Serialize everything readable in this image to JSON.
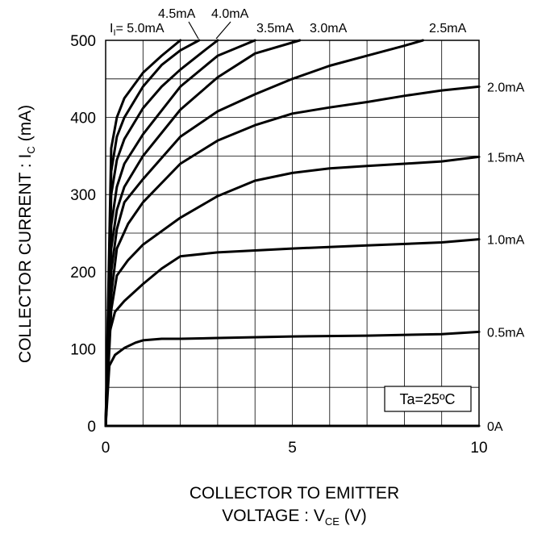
{
  "chart_data": {
    "type": "line",
    "title": "",
    "xlabel": {
      "line1": "COLLECTOR TO EMITTER",
      "line2_prefix": "VOLTAGE : V",
      "line2_sub": "CE",
      "line2_suffix": " (V)"
    },
    "ylabel": {
      "prefix": "COLLECTOR CURRENT : I",
      "sub": "C",
      "suffix": " (mA)"
    },
    "xlim": [
      0,
      10
    ],
    "ylim": [
      0,
      500
    ],
    "x_major_ticks": [
      0,
      5,
      10
    ],
    "y_major_ticks": [
      0,
      100,
      200,
      300,
      400,
      500
    ],
    "x_grid_step": 1,
    "y_grid_step": 50,
    "grid": true,
    "annotation": "Ta=25ºC",
    "ib_prefix": "I",
    "ib_sub": "I",
    "ib_eq": "= ",
    "series": [
      {
        "name": "0A",
        "x": [
          0,
          10
        ],
        "y": [
          0,
          0
        ]
      },
      {
        "name": "0.5mA",
        "x": [
          0,
          0.1,
          0.25,
          0.5,
          0.8,
          1.0,
          1.5,
          2,
          3,
          5,
          7,
          9,
          10
        ],
        "y": [
          0,
          78,
          92,
          101,
          108,
          111,
          113,
          113,
          114,
          116,
          117,
          119,
          122
        ]
      },
      {
        "name": "1.0mA",
        "x": [
          0,
          0.1,
          0.25,
          0.5,
          1,
          1.5,
          2,
          3,
          5,
          7,
          9,
          10
        ],
        "y": [
          0,
          120,
          148,
          162,
          184,
          204,
          220,
          225,
          230,
          234,
          238,
          242
        ]
      },
      {
        "name": "1.5mA",
        "x": [
          0,
          0.15,
          0.3,
          0.6,
          1,
          2,
          3,
          4,
          5,
          6,
          7,
          8,
          9,
          10
        ],
        "y": [
          0,
          150,
          195,
          215,
          235,
          270,
          298,
          318,
          328,
          334,
          337,
          340,
          343,
          349
        ]
      },
      {
        "name": "2.0mA",
        "x": [
          0,
          0.15,
          0.3,
          0.6,
          1,
          2,
          3,
          4,
          5,
          6,
          7,
          8,
          9,
          10
        ],
        "y": [
          0,
          170,
          230,
          262,
          290,
          340,
          370,
          390,
          405,
          413,
          420,
          428,
          435,
          440
        ]
      },
      {
        "name": "2.5mA",
        "x": [
          0,
          0.15,
          0.3,
          0.5,
          1,
          2,
          3,
          4,
          5,
          6,
          7,
          8,
          8.5
        ],
        "y": [
          0,
          200,
          255,
          290,
          320,
          375,
          408,
          430,
          450,
          467,
          480,
          493,
          500
        ]
      },
      {
        "name": "3.0mA",
        "x": [
          0,
          0.15,
          0.3,
          0.5,
          1,
          2,
          3,
          4,
          5.2
        ],
        "y": [
          0,
          230,
          280,
          310,
          350,
          410,
          452,
          483,
          500
        ]
      },
      {
        "name": "3.5mA",
        "x": [
          0,
          0.15,
          0.3,
          0.5,
          1,
          2,
          3,
          4
        ],
        "y": [
          0,
          260,
          310,
          340,
          378,
          440,
          480,
          500
        ]
      },
      {
        "name": "4.0mA",
        "x": [
          0,
          0.15,
          0.3,
          0.5,
          1,
          1.5,
          2,
          2.6,
          3.0
        ],
        "y": [
          0,
          300,
          345,
          372,
          412,
          440,
          462,
          485,
          500
        ]
      },
      {
        "name": "4.5mA",
        "x": [
          0,
          0.15,
          0.3,
          0.5,
          1,
          1.5,
          2,
          2.5
        ],
        "y": [
          0,
          330,
          375,
          400,
          440,
          468,
          487,
          500
        ]
      },
      {
        "name": "5.0mA",
        "x": [
          0,
          0.15,
          0.3,
          0.5,
          1,
          1.5,
          2
        ],
        "y": [
          0,
          360,
          400,
          425,
          458,
          480,
          500
        ]
      }
    ]
  }
}
